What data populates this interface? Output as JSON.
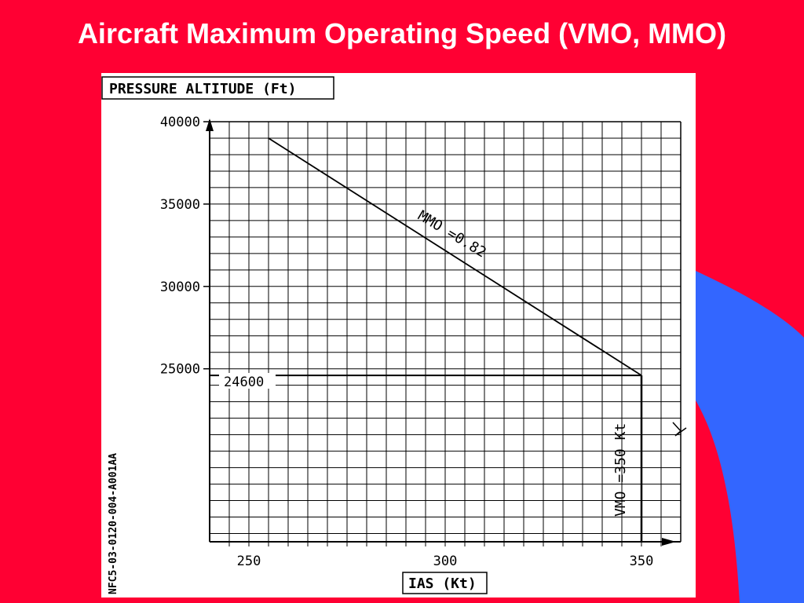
{
  "slide": {
    "title": "Aircraft Maximum Operating Speed (VMO, MMO)"
  },
  "colors": {
    "background": "#ff0033",
    "accent_blue": "#3366ff",
    "panel": "#ffffff",
    "ink": "#000000"
  },
  "chart_data": {
    "type": "line",
    "ylabel": "PRESSURE ALTITUDE (Ft)",
    "xlabel": "IAS (Kt)",
    "reference_code": "NFC5-03-0120-004-A001AA",
    "xlim": [
      240,
      360
    ],
    "ylim": [
      14500,
      40000
    ],
    "x_ticks": [
      250,
      300,
      350
    ],
    "y_ticks": [
      25000,
      30000,
      35000,
      40000
    ],
    "x_tick_labels": [
      "250",
      "300",
      "350"
    ],
    "y_tick_labels": [
      "25000",
      "30000",
      "35000",
      "40000"
    ],
    "grid": true,
    "series": [
      {
        "name": "MMO =0.82",
        "x": [
          255,
          350
        ],
        "y": [
          39000,
          24600
        ]
      },
      {
        "name": "VMO =350 Kt",
        "x": [
          350,
          350
        ],
        "y": [
          24600,
          14500
        ]
      }
    ],
    "reference_lines": [
      {
        "axis": "y",
        "value": 24600,
        "label": "24600"
      }
    ]
  }
}
